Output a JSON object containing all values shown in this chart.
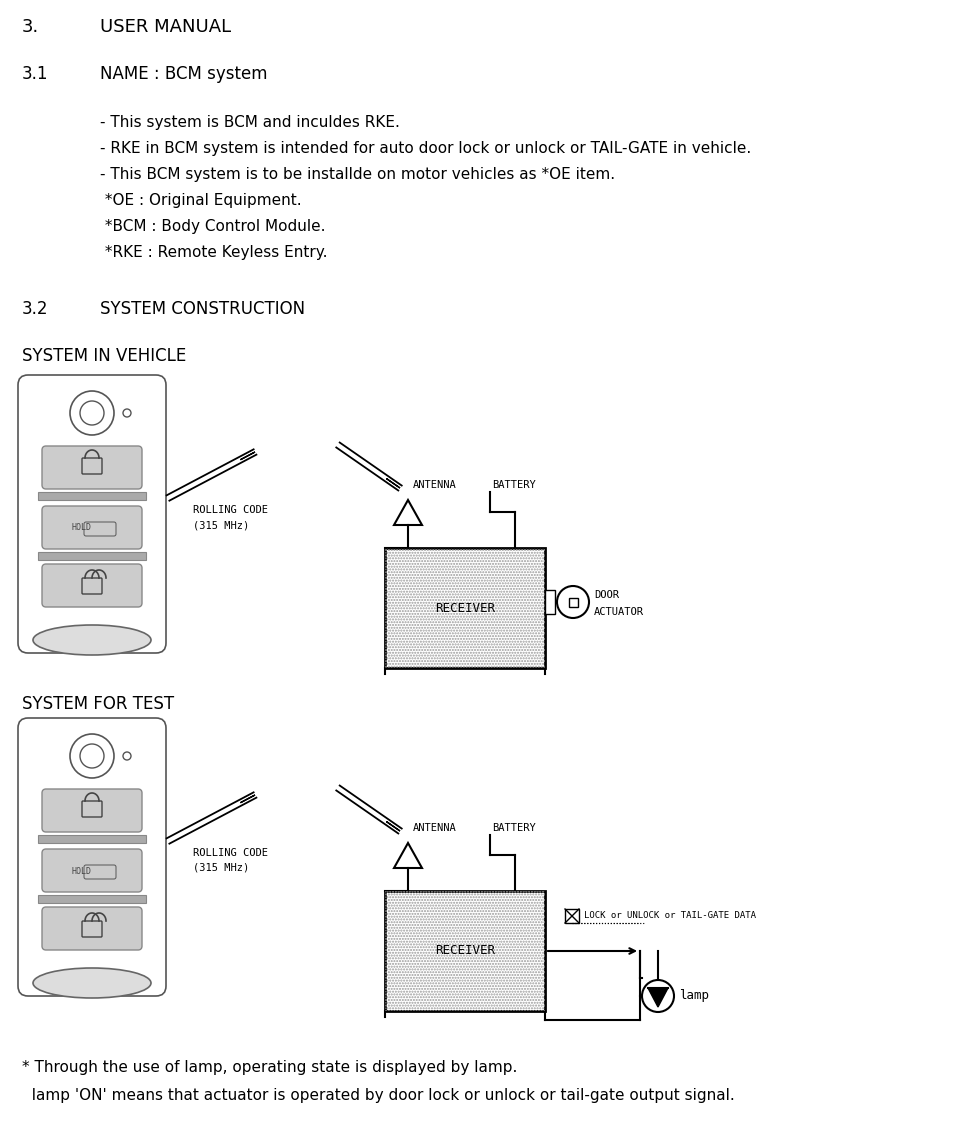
{
  "bg_color": "#ffffff",
  "text_color": "#000000",
  "title": "3.",
  "title2": "USER MANUAL",
  "s31_num": "3.1",
  "s31_txt": "NAME : BCM system",
  "s31_body": [
    "- This system is BCM and inculdes RKE.",
    "- RKE in BCM system is intended for auto door lock or unlock or TAIL-GATE in vehicle.",
    "- This BCM system is to be installde on motor vehicles as *OE item.",
    " *OE : Original Equipment.",
    " *BCM : Body Control Module.",
    " *RKE : Remote Keyless Entry."
  ],
  "s32_num": "3.2",
  "s32_txt": "SYSTEM CONSTRUCTION",
  "label_vehicle": "SYSTEM IN VEHICLE",
  "label_test": "SYSTEM FOR TEST",
  "rolling_code": "ROLLING CODE",
  "mhz": "(315 MHz)",
  "antenna": "ANTENNA",
  "battery": "BATTERY",
  "receiver": "RECEIVER",
  "door": "DOOR",
  "actuator": "ACTUATOR",
  "lock_data": "LOCK or UNLOCK or TAIL-GATE DATA",
  "lamp_label": "lamp",
  "note1": "* Through the use of lamp, operating state is displayed by lamp.",
  "note2": "  lamp 'ON' means that actuator is operated by door lock or unlock or tail-gate output signal."
}
